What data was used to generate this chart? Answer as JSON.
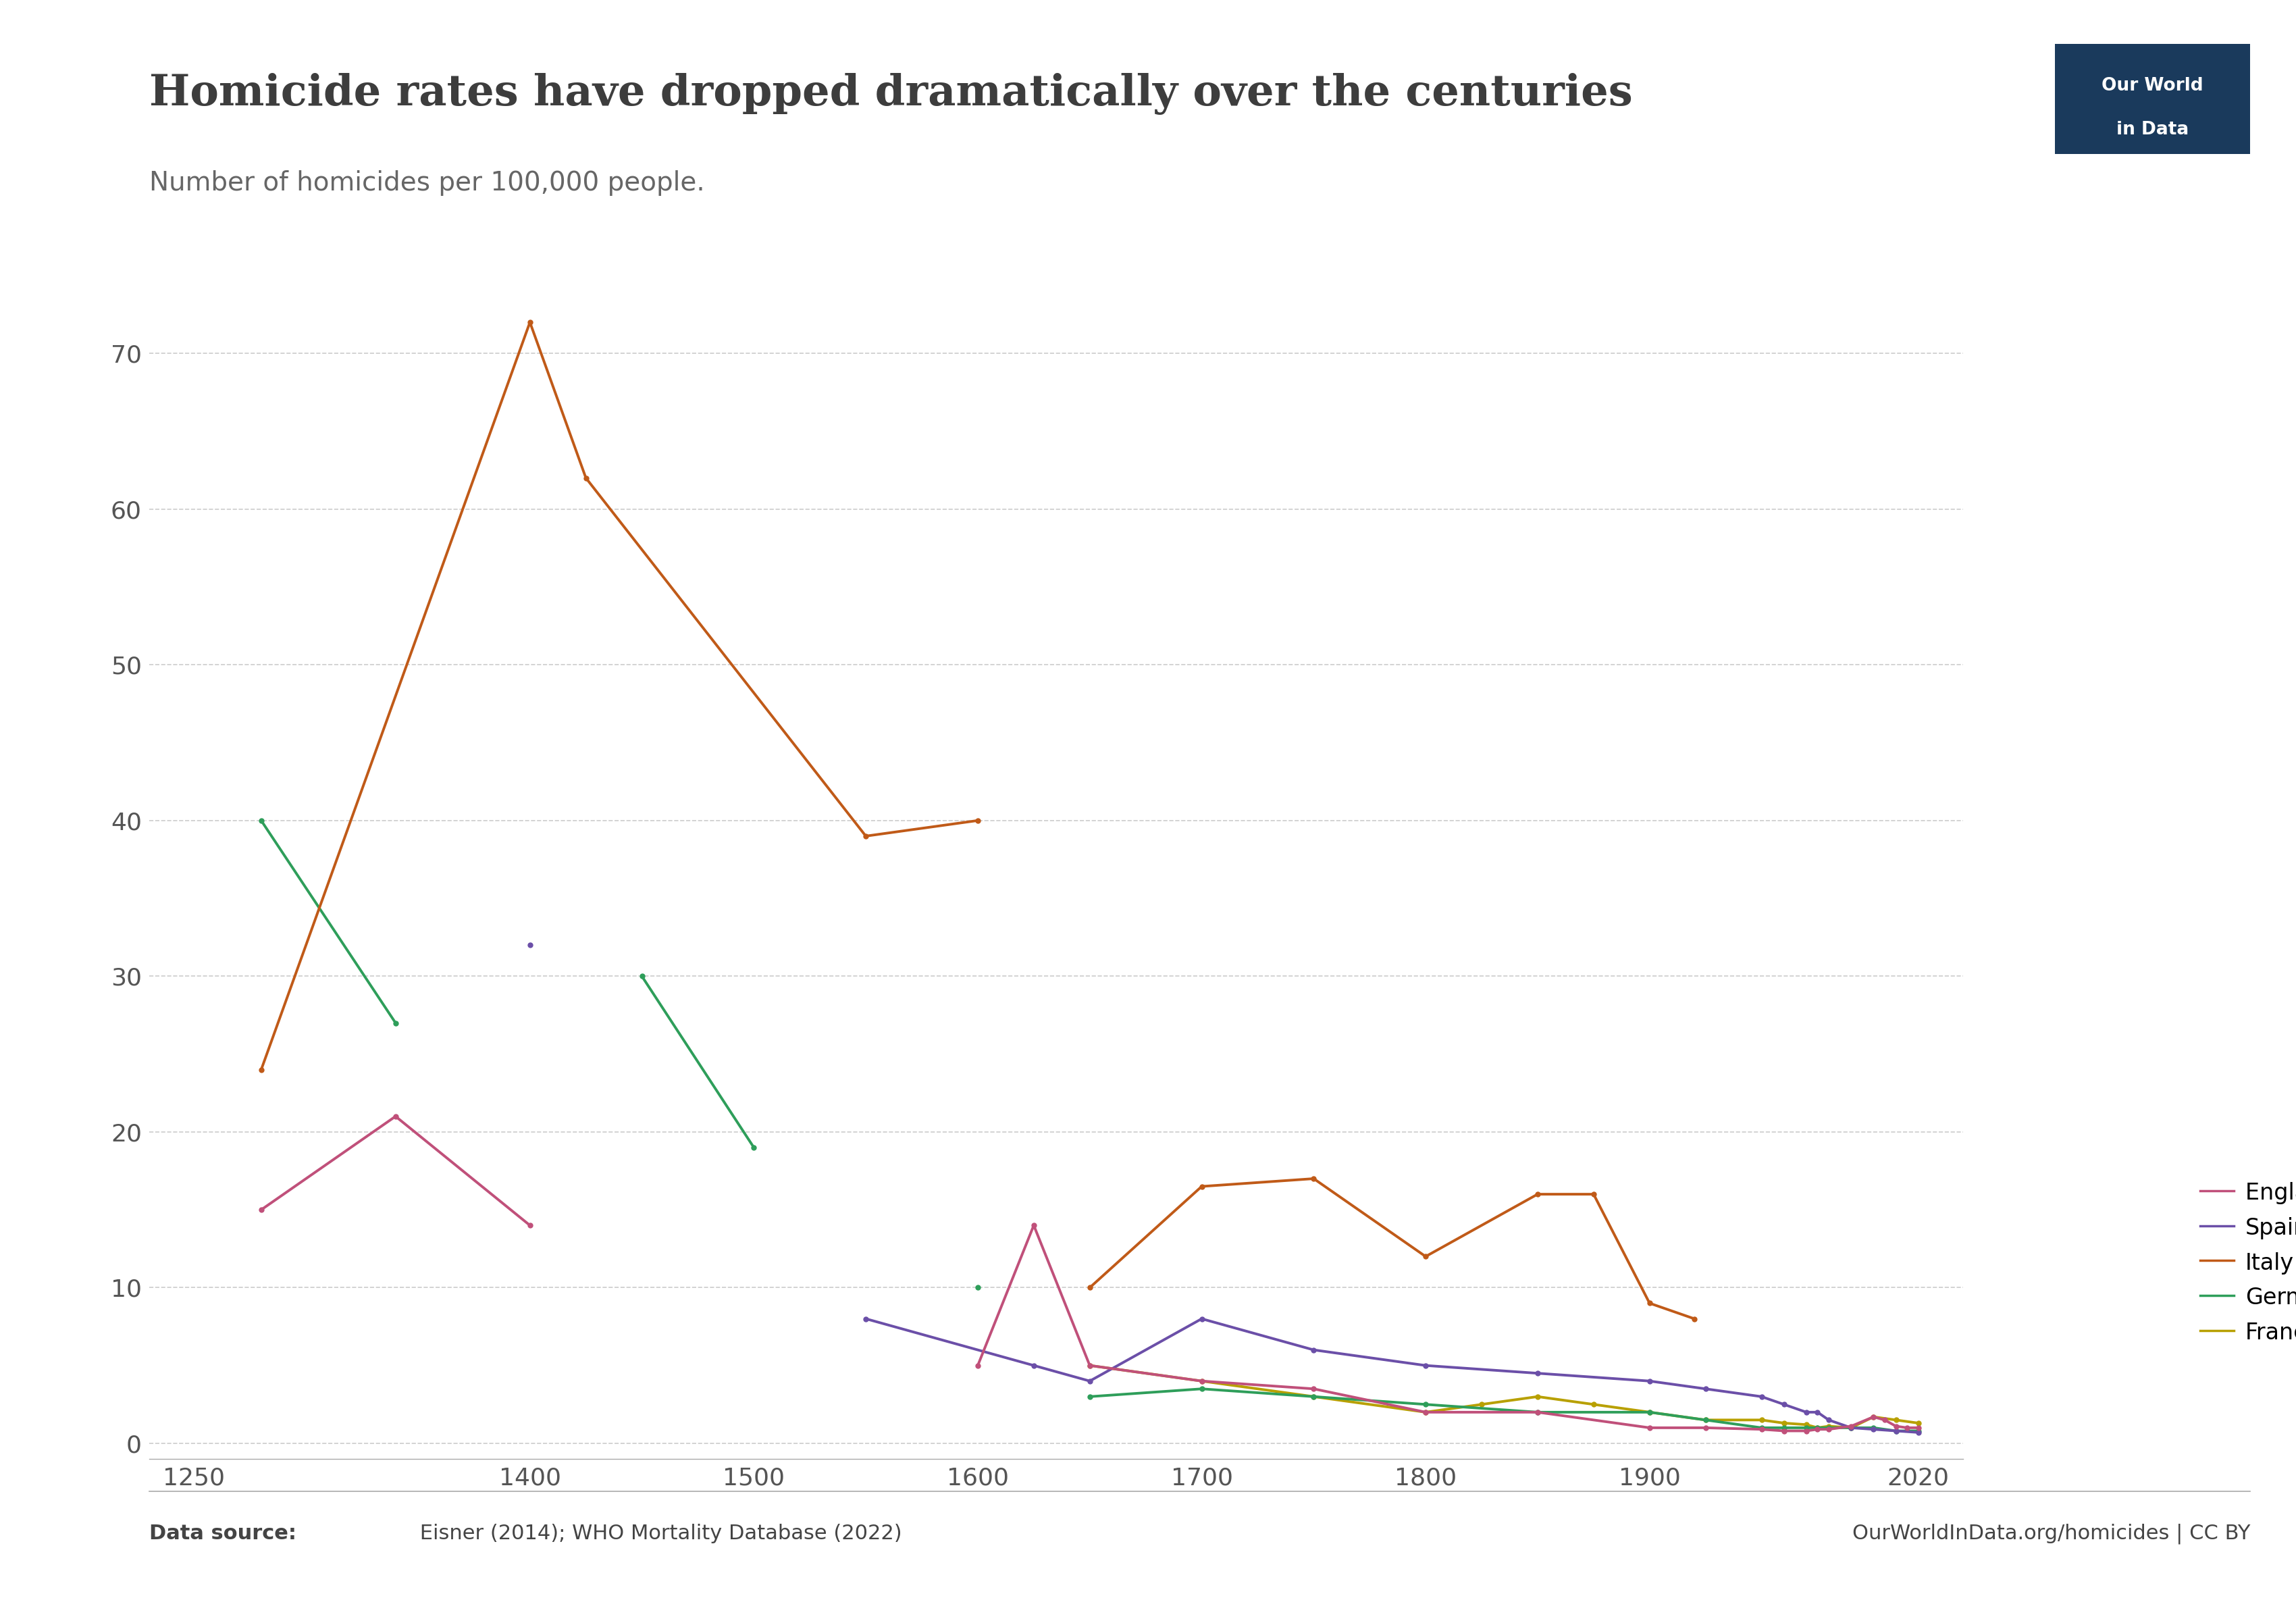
{
  "title": "Homicide rates have dropped dramatically over the centuries",
  "subtitle": "Number of homicides per 100,000 people.",
  "background_color": "#ffffff",
  "title_color": "#3d3d3d",
  "subtitle_color": "#666666",
  "title_fontsize": 46,
  "subtitle_fontsize": 28,
  "xlim": [
    1230,
    2040
  ],
  "ylim": [
    -1,
    75
  ],
  "yticks": [
    0,
    10,
    20,
    30,
    40,
    50,
    60,
    70
  ],
  "xticks": [
    1250,
    1400,
    1500,
    1600,
    1700,
    1800,
    1900,
    2020
  ],
  "grid_color": "#cccccc",
  "colors": {
    "England and Wales": "#C0507A",
    "Spain": "#6B4FA8",
    "Italy": "#C05A18",
    "Germany": "#2E9E5A",
    "France": "#B8A000"
  },
  "series": {
    "England and Wales": {
      "x": [
        1280,
        1340,
        1400,
        1450,
        1500,
        1550,
        1600,
        1625,
        1650,
        1700,
        1750,
        1800,
        1850,
        1900,
        1925,
        1950,
        1960,
        1970,
        1975,
        1980,
        1990,
        2000,
        2010,
        2020
      ],
      "y": [
        15,
        21,
        14,
        null,
        null,
        null,
        5,
        14,
        5,
        4,
        3.5,
        2,
        2,
        1,
        1,
        0.9,
        0.8,
        0.8,
        0.9,
        0.9,
        1.1,
        1.7,
        1.1,
        1.0
      ]
    },
    "Spain": {
      "x": [
        1400,
        1500,
        1550,
        1600,
        1625,
        1650,
        1700,
        1750,
        1800,
        1850,
        1900,
        1920,
        1940,
        1950,
        1960,
        1970,
        1975,
        1980,
        1990,
        2000,
        2010,
        2020
      ],
      "y": [
        32,
        null,
        8,
        null,
        5,
        4,
        8,
        6,
        5,
        4.5,
        4,
        3.5,
        3,
        3,
        2.5,
        2,
        2,
        1.5,
        1.0,
        0.9,
        0.8,
        0.7
      ]
    },
    "Italy": {
      "x": [
        1280,
        1340,
        1400,
        1425,
        1450,
        1500,
        1550,
        1600,
        1625,
        1650,
        1700,
        1750,
        1800,
        1850,
        1900,
        1920
      ],
      "y": [
        24,
        null,
        72,
        62,
        null,
        null,
        39,
        40,
        null,
        null,
        null,
        null,
        null,
        null,
        null,
        null
      ]
    },
    "Germany": {
      "x": [
        1280,
        1340,
        1400,
        1450,
        1500,
        1550,
        1600,
        1625,
        1650,
        1700,
        1750,
        1800,
        1850,
        1900,
        1925,
        1950,
        1960,
        1970,
        1975,
        1980,
        1990,
        2000,
        2010,
        2020
      ],
      "y": [
        40,
        27,
        null,
        30,
        19,
        null,
        10,
        null,
        3,
        null,
        null,
        null,
        null,
        null,
        null,
        null,
        null,
        null,
        null,
        null,
        null,
        null,
        null,
        null
      ]
    },
    "France": {
      "x": [
        1600,
        1625,
        1650,
        1700,
        1750,
        1800,
        1825,
        1850,
        1875,
        1900,
        1925,
        1950,
        1960,
        1970,
        1975,
        1980,
        1990,
        2000,
        2010,
        2020
      ],
      "y": [
        null,
        null,
        null,
        null,
        null,
        null,
        null,
        null,
        null,
        null,
        null,
        null,
        null,
        null,
        null,
        null,
        null,
        null,
        null,
        null
      ]
    }
  },
  "logo_bg": "#1a3a5c",
  "footer_left_bold": "Data source:",
  "footer_left_rest": " Eisner (2014); WHO Mortality Database (2022)",
  "footer_right": "OurWorldInData.org/homicides | CC BY"
}
